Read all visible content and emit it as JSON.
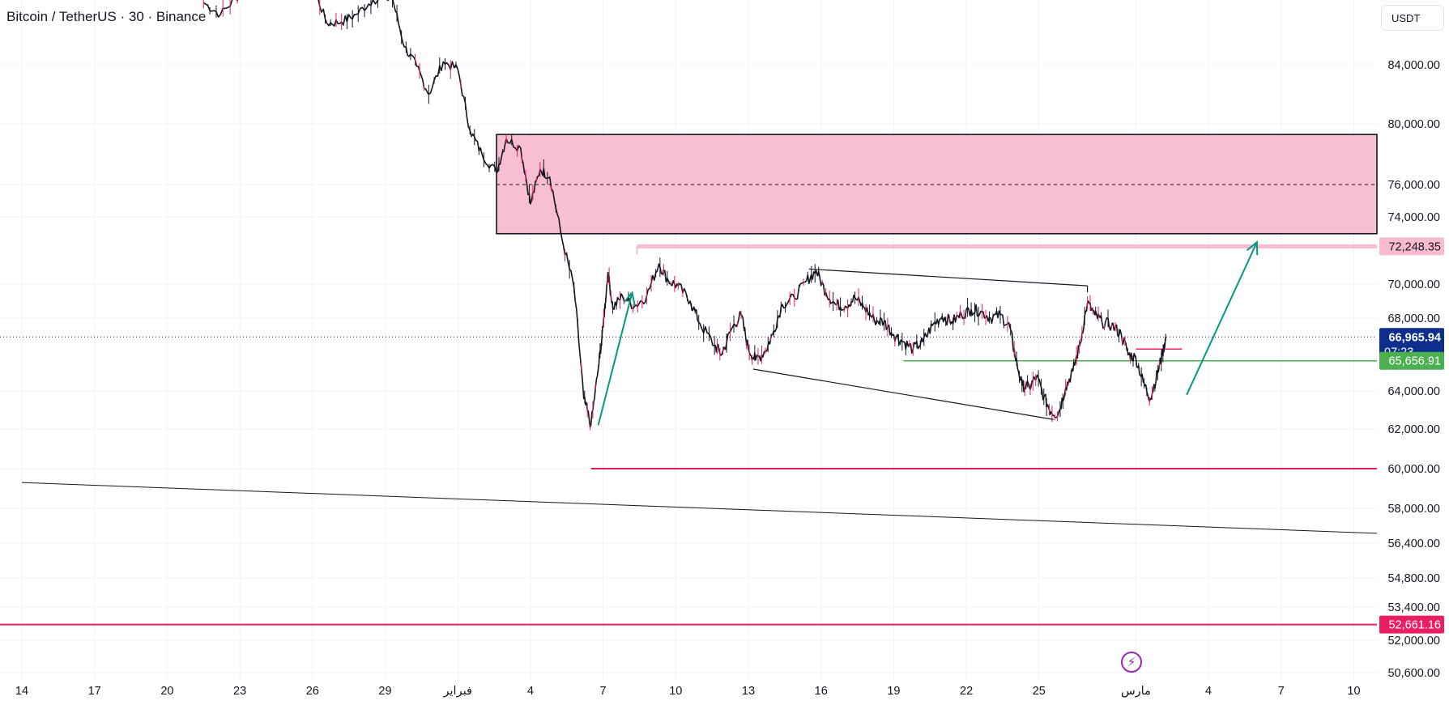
{
  "header": {
    "title": "Bitcoin / TetherUS · 30 · Binance",
    "currency": "USDT"
  },
  "colors": {
    "zone_fill": "#f8bbd0",
    "pink_line": "#e91e63",
    "pink_soft": "#f8bbd0",
    "green": "#4caf50",
    "teal": "#089981",
    "last_price_bg": "#0d2e8c",
    "candle_up": "#131722",
    "candle_down": "#e91e63"
  },
  "chart_data": {
    "type": "line",
    "y_axis": {
      "ticks": [
        {
          "value": 84000,
          "label": "84,000.00"
        },
        {
          "value": 80000,
          "label": "80,000.00"
        },
        {
          "value": 76000,
          "label": "76,000.00"
        },
        {
          "value": 74000,
          "label": "74,000.00"
        },
        {
          "value": 70000,
          "label": "70,000.00"
        },
        {
          "value": 68000,
          "label": "68,000.00"
        },
        {
          "value": 64000,
          "label": "64,000.00"
        },
        {
          "value": 62000,
          "label": "62,000.00"
        },
        {
          "value": 60000,
          "label": "60,000.00"
        },
        {
          "value": 58000,
          "label": "58,000.00"
        },
        {
          "value": 56400,
          "label": "56,400.00"
        },
        {
          "value": 54800,
          "label": "54,800.00"
        },
        {
          "value": 53400,
          "label": "53,400.00"
        },
        {
          "value": 52000,
          "label": "52,000.00"
        },
        {
          "value": 50600,
          "label": "50,600.00"
        }
      ]
    },
    "x_axis": {
      "ticks": [
        {
          "day": 0,
          "label": "14"
        },
        {
          "day": 3,
          "label": "17"
        },
        {
          "day": 6,
          "label": "20"
        },
        {
          "day": 9,
          "label": "23"
        },
        {
          "day": 12,
          "label": "26"
        },
        {
          "day": 15,
          "label": "29"
        },
        {
          "day": 18,
          "label": "فبراير"
        },
        {
          "day": 21,
          "label": "4"
        },
        {
          "day": 24,
          "label": "7"
        },
        {
          "day": 27,
          "label": "10"
        },
        {
          "day": 30,
          "label": "13"
        },
        {
          "day": 33,
          "label": "16"
        },
        {
          "day": 36,
          "label": "19"
        },
        {
          "day": 39,
          "label": "22"
        },
        {
          "day": 42,
          "label": "25"
        },
        {
          "day": 46,
          "label": "مارس"
        },
        {
          "day": 49,
          "label": "4"
        },
        {
          "day": 52,
          "label": "7"
        },
        {
          "day": 55,
          "label": "10"
        }
      ]
    },
    "series": [
      {
        "points": [
          [
            7.5,
            88200
          ],
          [
            8.2,
            87400
          ],
          [
            9.0,
            88800
          ],
          [
            10.3,
            89600
          ],
          [
            12.0,
            89400
          ],
          [
            12.6,
            86800
          ],
          [
            13.2,
            86900
          ],
          [
            13.8,
            87400
          ],
          [
            14.5,
            88400
          ],
          [
            15.3,
            88500
          ],
          [
            15.8,
            85200
          ],
          [
            16.3,
            83900
          ],
          [
            16.8,
            82000
          ],
          [
            17.4,
            84200
          ],
          [
            18.0,
            83700
          ],
          [
            18.5,
            79600
          ],
          [
            19.0,
            78000
          ],
          [
            19.6,
            76800
          ],
          [
            20.0,
            79000
          ],
          [
            20.6,
            78400
          ],
          [
            21.0,
            74800
          ],
          [
            21.4,
            77000
          ],
          [
            21.8,
            76500
          ],
          [
            22.3,
            72700
          ],
          [
            22.8,
            69800
          ],
          [
            23.2,
            63600
          ],
          [
            23.5,
            62200
          ],
          [
            23.8,
            65200
          ],
          [
            24.0,
            67500
          ],
          [
            24.2,
            70700
          ],
          [
            24.4,
            68600
          ],
          [
            24.8,
            69300
          ],
          [
            25.3,
            68700
          ],
          [
            25.8,
            69300
          ],
          [
            26.3,
            71200
          ],
          [
            26.7,
            70200
          ],
          [
            27.1,
            69900
          ],
          [
            27.6,
            69000
          ],
          [
            28.0,
            67700
          ],
          [
            28.6,
            66500
          ],
          [
            28.9,
            66000
          ],
          [
            29.3,
            67400
          ],
          [
            29.7,
            68200
          ],
          [
            30.0,
            66300
          ],
          [
            30.3,
            65700
          ],
          [
            30.7,
            66200
          ],
          [
            31.0,
            67100
          ],
          [
            31.4,
            68800
          ],
          [
            31.9,
            69200
          ],
          [
            32.4,
            70200
          ],
          [
            32.8,
            70800
          ],
          [
            33.2,
            69500
          ],
          [
            33.6,
            68800
          ],
          [
            34.0,
            68700
          ],
          [
            34.4,
            69200
          ],
          [
            34.8,
            68600
          ],
          [
            35.2,
            67900
          ],
          [
            35.6,
            67800
          ],
          [
            36.0,
            67100
          ],
          [
            36.4,
            66700
          ],
          [
            36.8,
            66300
          ],
          [
            37.2,
            66700
          ],
          [
            37.6,
            67600
          ],
          [
            38.0,
            68100
          ],
          [
            38.4,
            67800
          ],
          [
            38.8,
            68200
          ],
          [
            39.2,
            68500
          ],
          [
            39.6,
            68400
          ],
          [
            40.0,
            68000
          ],
          [
            40.4,
            68200
          ],
          [
            40.8,
            67500
          ],
          [
            41.0,
            66000
          ],
          [
            41.3,
            64300
          ],
          [
            41.6,
            64200
          ],
          [
            41.9,
            64800
          ],
          [
            42.2,
            63700
          ],
          [
            42.5,
            62900
          ],
          [
            42.8,
            62800
          ],
          [
            43.1,
            64200
          ],
          [
            43.4,
            65100
          ],
          [
            43.7,
            66600
          ],
          [
            44.0,
            68900
          ],
          [
            44.3,
            68200
          ],
          [
            44.6,
            67800
          ],
          [
            45.0,
            67600
          ],
          [
            45.4,
            67100
          ],
          [
            45.7,
            66000
          ],
          [
            46.0,
            65800
          ],
          [
            46.3,
            64500
          ],
          [
            46.6,
            63600
          ],
          [
            46.9,
            65000
          ],
          [
            47.1,
            66100
          ],
          [
            47.25,
            66966
          ]
        ]
      }
    ],
    "annotations": {
      "supply_zone": {
        "y_top": 79300,
        "y_bottom": 73000,
        "y_mid": 76000,
        "x_start": 19.6
      },
      "level_top_pink": {
        "price": 72248.35,
        "label": "72,248.35",
        "x_start": 25.4
      },
      "last_price": {
        "price": 66965.94,
        "label": "66,965.94",
        "countdown": "07:23"
      },
      "level_green": {
        "price": 65656.91,
        "label": "65,656.91",
        "x_start": 36.4
      },
      "level_pink_60k": {
        "price": 60000,
        "x_start": 23.5
      },
      "level_pink_bottom": {
        "price": 52661.16,
        "label": "52,661.16"
      },
      "level_pink_short": {
        "price": 66300,
        "x_start": 46.0,
        "x_end": 47.9
      },
      "trend_line_long": {
        "from": [
          0,
          59300
        ],
        "to": [
          56.5,
          56850
        ]
      },
      "wedge_upper": {
        "from": [
          32.5,
          70900
        ],
        "to": [
          44.0,
          69900
        ]
      },
      "wedge_lower": {
        "from": [
          30.2,
          65200
        ],
        "to": [
          42.6,
          62500
        ]
      },
      "arrow_left": {
        "from": [
          23.8,
          62200
        ],
        "to": [
          25.2,
          69500
        ]
      },
      "arrow_right": {
        "from": [
          48.1,
          63800
        ],
        "to": [
          51.0,
          72500
        ]
      }
    }
  }
}
